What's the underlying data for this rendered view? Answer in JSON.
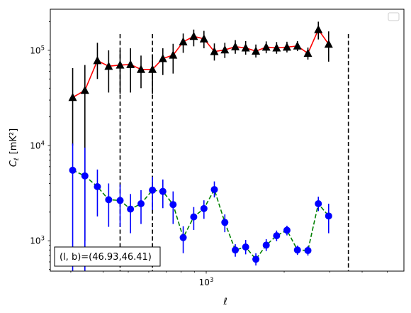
{
  "chart_data": {
    "type": "line",
    "xlabel": "ℓ",
    "ylabel_main": "C",
    "ylabel_sub": "ℓ",
    "ylabel_unit": "[mK²]",
    "xscale": "log",
    "yscale": "log",
    "xlim": [
      250,
      5800
    ],
    "ylim": [
      480,
      270000
    ],
    "x_major_ticks": [
      {
        "value": 1000,
        "base": "10",
        "exp": "3"
      }
    ],
    "y_major_ticks": [
      {
        "value": 1000,
        "base": "10",
        "exp": "3"
      },
      {
        "value": 10000,
        "base": "10",
        "exp": "4"
      },
      {
        "value": 100000,
        "base": "10",
        "exp": "5"
      }
    ],
    "vlines": [
      465,
      620,
      3540
    ],
    "annotation": "(l, b)=(46.93,46.41)",
    "legend": {
      "position": "top-right",
      "entries": []
    },
    "grid": false,
    "series": [
      {
        "marker": "triangle",
        "marker_color": "#000000",
        "line_color": "#ff0000",
        "line_style": "solid",
        "errorbar_color": "#000000",
        "points": [
          {
            "x": 305,
            "y": 32000,
            "lo": 10000,
            "hi": 65000
          },
          {
            "x": 340,
            "y": 38000,
            "lo": 1000,
            "hi": 70000
          },
          {
            "x": 380,
            "y": 78000,
            "lo": 50000,
            "hi": 120000
          },
          {
            "x": 420,
            "y": 68000,
            "lo": 36000,
            "hi": 100000
          },
          {
            "x": 465,
            "y": 70000,
            "lo": 35000,
            "hi": 100000
          },
          {
            "x": 510,
            "y": 71000,
            "lo": 36000,
            "hi": 105000
          },
          {
            "x": 560,
            "y": 63000,
            "lo": 40000,
            "hi": 88000
          },
          {
            "x": 620,
            "y": 63000,
            "lo": 35000,
            "hi": 90000
          },
          {
            "x": 680,
            "y": 82000,
            "lo": 55000,
            "hi": 105000
          },
          {
            "x": 745,
            "y": 89000,
            "lo": 57000,
            "hi": 117000
          },
          {
            "x": 815,
            "y": 123000,
            "lo": 94000,
            "hi": 150000
          },
          {
            "x": 895,
            "y": 140000,
            "lo": 110000,
            "hi": 165000
          },
          {
            "x": 980,
            "y": 132000,
            "lo": 105000,
            "hi": 160000
          },
          {
            "x": 1075,
            "y": 97000,
            "lo": 78000,
            "hi": 118000
          },
          {
            "x": 1180,
            "y": 101000,
            "lo": 83000,
            "hi": 120000
          },
          {
            "x": 1295,
            "y": 109000,
            "lo": 92000,
            "hi": 128000
          },
          {
            "x": 1420,
            "y": 106000,
            "lo": 90000,
            "hi": 125000
          },
          {
            "x": 1555,
            "y": 98000,
            "lo": 84000,
            "hi": 115000
          },
          {
            "x": 1705,
            "y": 108000,
            "lo": 93000,
            "hi": 124000
          },
          {
            "x": 1870,
            "y": 106000,
            "lo": 92000,
            "hi": 122000
          },
          {
            "x": 2050,
            "y": 108000,
            "lo": 95000,
            "hi": 123000
          },
          {
            "x": 2250,
            "y": 111000,
            "lo": 98000,
            "hi": 125000
          },
          {
            "x": 2470,
            "y": 93000,
            "lo": 80000,
            "hi": 107000
          },
          {
            "x": 2710,
            "y": 165000,
            "lo": 130000,
            "hi": 200000
          },
          {
            "x": 2970,
            "y": 116000,
            "lo": 76000,
            "hi": 158000
          }
        ]
      },
      {
        "marker": "circle",
        "marker_color": "#0000ff",
        "line_color": "#008000",
        "line_style": "dashed",
        "errorbar_color": "#0000ff",
        "points": [
          {
            "x": 305,
            "y": 5500,
            "lo": 400,
            "hi": 10500
          },
          {
            "x": 340,
            "y": 4800,
            "lo": 400,
            "hi": 9500
          },
          {
            "x": 380,
            "y": 3700,
            "lo": 1800,
            "hi": 5600
          },
          {
            "x": 420,
            "y": 2700,
            "lo": 1400,
            "hi": 4000
          },
          {
            "x": 465,
            "y": 2650,
            "lo": 1400,
            "hi": 3900
          },
          {
            "x": 510,
            "y": 2150,
            "lo": 1200,
            "hi": 3100
          },
          {
            "x": 560,
            "y": 2450,
            "lo": 1500,
            "hi": 3400
          },
          {
            "x": 620,
            "y": 3400,
            "lo": 2100,
            "hi": 4700
          },
          {
            "x": 680,
            "y": 3300,
            "lo": 2200,
            "hi": 4400
          },
          {
            "x": 745,
            "y": 2400,
            "lo": 1500,
            "hi": 3300
          },
          {
            "x": 815,
            "y": 1080,
            "lo": 740,
            "hi": 1420
          },
          {
            "x": 895,
            "y": 1780,
            "lo": 1300,
            "hi": 2260
          },
          {
            "x": 980,
            "y": 2180,
            "lo": 1700,
            "hi": 2660
          },
          {
            "x": 1075,
            "y": 3450,
            "lo": 2850,
            "hi": 4200
          },
          {
            "x": 1180,
            "y": 1560,
            "lo": 1230,
            "hi": 1890
          },
          {
            "x": 1295,
            "y": 800,
            "lo": 680,
            "hi": 920
          },
          {
            "x": 1420,
            "y": 860,
            "lo": 720,
            "hi": 1020
          },
          {
            "x": 1555,
            "y": 640,
            "lo": 550,
            "hi": 740
          },
          {
            "x": 1705,
            "y": 900,
            "lo": 780,
            "hi": 1040
          },
          {
            "x": 1870,
            "y": 1130,
            "lo": 990,
            "hi": 1280
          },
          {
            "x": 2050,
            "y": 1290,
            "lo": 1140,
            "hi": 1440
          },
          {
            "x": 2250,
            "y": 800,
            "lo": 710,
            "hi": 890
          },
          {
            "x": 2470,
            "y": 790,
            "lo": 700,
            "hi": 880
          },
          {
            "x": 2710,
            "y": 2450,
            "lo": 2050,
            "hi": 2900
          },
          {
            "x": 2970,
            "y": 1820,
            "lo": 1200,
            "hi": 2450
          }
        ]
      }
    ]
  }
}
